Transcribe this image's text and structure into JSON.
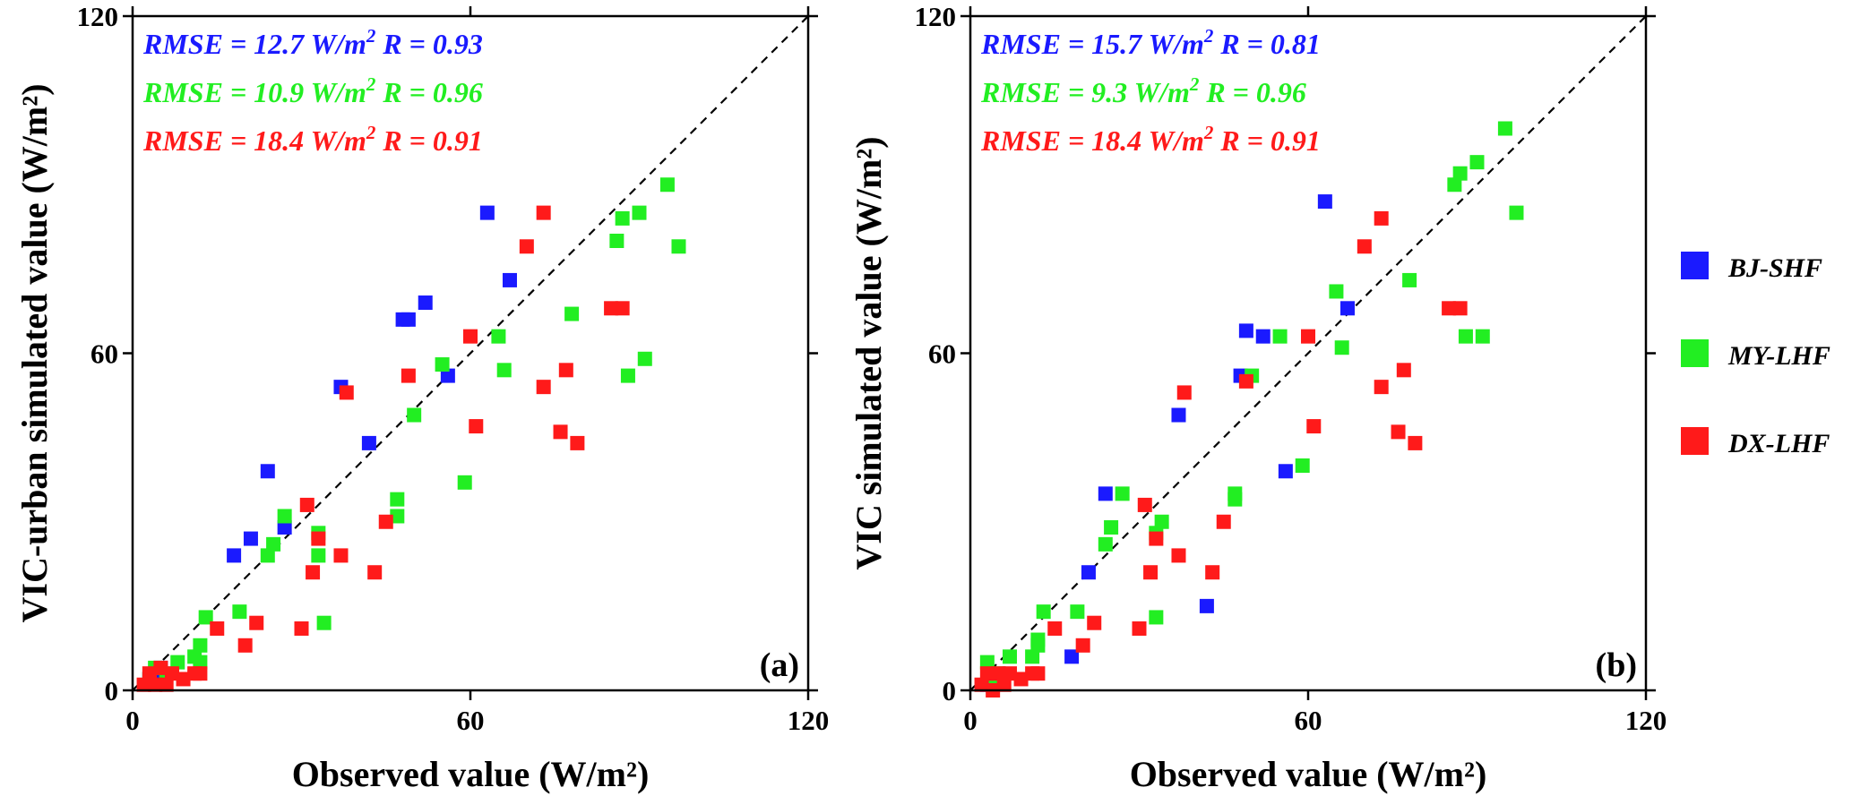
{
  "legend": [
    {
      "name": "BJ-SHF",
      "color": "#1a1aff"
    },
    {
      "name": "MY-LHF",
      "color": "#22ee22"
    },
    {
      "name": "DX-LHF",
      "color": "#ff1a1a"
    }
  ],
  "chart_data": [
    {
      "type": "scatter",
      "panel_label": "(a)",
      "xlabel": "Observed value (W/m²)",
      "ylabel": "VIC-urban simulated value (W/m²)",
      "xlim": [
        0,
        120
      ],
      "ylim": [
        0,
        120
      ],
      "xticks": [
        "0",
        "60",
        "120"
      ],
      "yticks": [
        "0",
        "60",
        "120"
      ],
      "reference_line": "1:1 dashed",
      "stats": [
        {
          "series": "BJ-SHF",
          "color": "#1a1aff",
          "rmse": "RMSE = 12.7 W/m",
          "exp": "2",
          "r": " R = 0.93"
        },
        {
          "series": "MY-LHF",
          "color": "#22ee22",
          "rmse": "RMSE = 10.9 W/m",
          "exp": "2",
          "r": " R = 0.96"
        },
        {
          "series": "DX-LHF",
          "color": "#ff1a1a",
          "rmse": "RMSE = 18.4 W/m",
          "exp": "2",
          "r": " R = 0.91"
        }
      ],
      "series": [
        {
          "name": "BJ-SHF",
          "color": "#1a1aff",
          "points": [
            [
              3,
              2
            ],
            [
              4,
              3
            ],
            [
              5,
              4
            ],
            [
              18,
              24
            ],
            [
              21,
              27
            ],
            [
              24,
              39
            ],
            [
              27,
              29
            ],
            [
              37,
              54
            ],
            [
              42,
              44
            ],
            [
              48,
              66
            ],
            [
              49,
              66
            ],
            [
              52,
              69
            ],
            [
              56,
              56
            ],
            [
              63,
              85
            ],
            [
              67,
              73
            ]
          ]
        },
        {
          "name": "MY-LHF",
          "color": "#22ee22",
          "points": [
            [
              3,
              2
            ],
            [
              4,
              4
            ],
            [
              6,
              3
            ],
            [
              8,
              5
            ],
            [
              11,
              6
            ],
            [
              12,
              8
            ],
            [
              12,
              5
            ],
            [
              13,
              13
            ],
            [
              19,
              14
            ],
            [
              24,
              24
            ],
            [
              25,
              26
            ],
            [
              27,
              31
            ],
            [
              33,
              24
            ],
            [
              33,
              28
            ],
            [
              34,
              12
            ],
            [
              47,
              31
            ],
            [
              47,
              34
            ],
            [
              50,
              49
            ],
            [
              55,
              58
            ],
            [
              59,
              37
            ],
            [
              65,
              63
            ],
            [
              66,
              57
            ],
            [
              78,
              67
            ],
            [
              86,
              80
            ],
            [
              87,
              84
            ],
            [
              88,
              56
            ],
            [
              90,
              85
            ],
            [
              91,
              59
            ],
            [
              95,
              90
            ],
            [
              97,
              79
            ]
          ]
        },
        {
          "name": "DX-LHF",
          "color": "#ff1a1a",
          "points": [
            [
              2,
              1
            ],
            [
              3,
              3
            ],
            [
              4,
              1
            ],
            [
              5,
              4
            ],
            [
              6,
              1
            ],
            [
              7,
              3
            ],
            [
              9,
              2
            ],
            [
              11,
              3
            ],
            [
              12,
              3
            ],
            [
              15,
              11
            ],
            [
              20,
              8
            ],
            [
              22,
              12
            ],
            [
              30,
              11
            ],
            [
              31,
              33
            ],
            [
              32,
              21
            ],
            [
              33,
              27
            ],
            [
              37,
              24
            ],
            [
              38,
              53
            ],
            [
              43,
              21
            ],
            [
              45,
              30
            ],
            [
              49,
              56
            ],
            [
              60,
              63
            ],
            [
              61,
              47
            ],
            [
              70,
              79
            ],
            [
              73,
              54
            ],
            [
              73,
              85
            ],
            [
              76,
              46
            ],
            [
              77,
              57
            ],
            [
              79,
              44
            ],
            [
              85,
              68
            ],
            [
              87,
              68
            ]
          ]
        }
      ]
    },
    {
      "type": "scatter",
      "panel_label": "(b)",
      "xlabel": "Observed value (W/m²)",
      "ylabel": "VIC simulated value (W/m²)",
      "xlim": [
        0,
        120
      ],
      "ylim": [
        0,
        120
      ],
      "xticks": [
        "0",
        "60",
        "120"
      ],
      "yticks": [
        "0",
        "60",
        "120"
      ],
      "reference_line": "1:1 dashed",
      "stats": [
        {
          "series": "BJ-SHF",
          "color": "#1a1aff",
          "rmse": "RMSE = 15.7 W/m",
          "exp": "2",
          "r": " R = 0.81"
        },
        {
          "series": "MY-LHF",
          "color": "#22ee22",
          "rmse": "RMSE = 9.3 W/m",
          "exp": "2",
          "r": " R = 0.96"
        },
        {
          "series": "DX-LHF",
          "color": "#ff1a1a",
          "rmse": "RMSE = 18.4 W/m",
          "exp": "2",
          "r": " R = 0.91"
        }
      ],
      "series": [
        {
          "name": "BJ-SHF",
          "color": "#1a1aff",
          "points": [
            [
              3,
              1
            ],
            [
              4,
              2
            ],
            [
              18,
              6
            ],
            [
              21,
              21
            ],
            [
              24,
              35
            ],
            [
              37,
              49
            ],
            [
              42,
              15
            ],
            [
              48,
              56
            ],
            [
              49,
              64
            ],
            [
              52,
              63
            ],
            [
              56,
              39
            ],
            [
              63,
              87
            ],
            [
              67,
              68
            ]
          ]
        },
        {
          "name": "MY-LHF",
          "color": "#22ee22",
          "points": [
            [
              3,
              5
            ],
            [
              4,
              2
            ],
            [
              5,
              3
            ],
            [
              7,
              6
            ],
            [
              11,
              6
            ],
            [
              12,
              8
            ],
            [
              12,
              9
            ],
            [
              13,
              14
            ],
            [
              19,
              14
            ],
            [
              24,
              26
            ],
            [
              25,
              29
            ],
            [
              27,
              35
            ],
            [
              33,
              13
            ],
            [
              33,
              28
            ],
            [
              34,
              30
            ],
            [
              47,
              34
            ],
            [
              47,
              35
            ],
            [
              50,
              56
            ],
            [
              55,
              63
            ],
            [
              59,
              40
            ],
            [
              65,
              71
            ],
            [
              66,
              61
            ],
            [
              78,
              73
            ],
            [
              86,
              90
            ],
            [
              87,
              92
            ],
            [
              88,
              63
            ],
            [
              90,
              94
            ],
            [
              91,
              63
            ],
            [
              95,
              100
            ],
            [
              97,
              85
            ]
          ]
        },
        {
          "name": "DX-LHF",
          "color": "#ff1a1a",
          "points": [
            [
              2,
              1
            ],
            [
              3,
              3
            ],
            [
              4,
              0
            ],
            [
              5,
              3
            ],
            [
              6,
              1
            ],
            [
              7,
              3
            ],
            [
              9,
              2
            ],
            [
              11,
              3
            ],
            [
              12,
              3
            ],
            [
              15,
              11
            ],
            [
              20,
              8
            ],
            [
              22,
              12
            ],
            [
              30,
              11
            ],
            [
              31,
              33
            ],
            [
              32,
              21
            ],
            [
              33,
              27
            ],
            [
              37,
              24
            ],
            [
              38,
              53
            ],
            [
              43,
              21
            ],
            [
              45,
              30
            ],
            [
              49,
              55
            ],
            [
              60,
              63
            ],
            [
              61,
              47
            ],
            [
              70,
              79
            ],
            [
              73,
              54
            ],
            [
              73,
              84
            ],
            [
              76,
              46
            ],
            [
              77,
              57
            ],
            [
              79,
              44
            ],
            [
              85,
              68
            ],
            [
              87,
              68
            ]
          ]
        }
      ]
    }
  ]
}
